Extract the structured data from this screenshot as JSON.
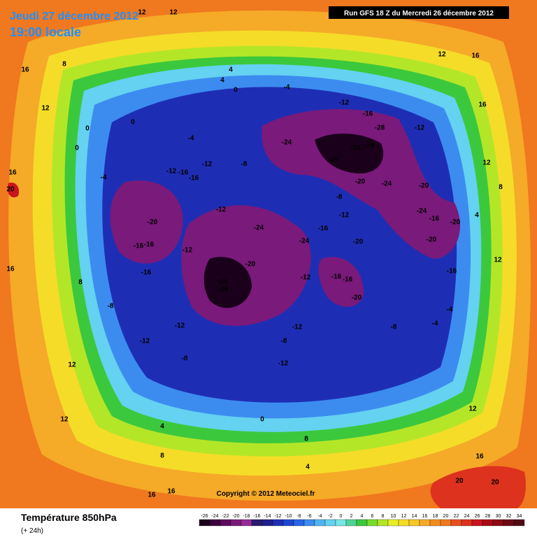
{
  "header": {
    "date": "Jeudi 27 décembre 2012",
    "time": "19:00 locale",
    "run": "Run GFS 18 Z du Mercredi 26 décembre 2012"
  },
  "map": {
    "copyright": "Copyright © 2012 Meteociel.fr",
    "contour_labels": [
      12,
      12,
      16,
      8,
      12,
      4,
      4,
      0,
      -4,
      -12,
      -16,
      -28,
      -12,
      -24,
      -28,
      -24,
      -28,
      -20,
      -24,
      -20,
      -8,
      -12,
      -16,
      -24,
      -24,
      -20,
      -20,
      -16,
      -16,
      -12,
      -16,
      -12,
      -20,
      -24,
      -28,
      -12,
      -16,
      -16,
      -20,
      -16,
      -12,
      -12,
      -8,
      -12,
      -8,
      -12,
      -8,
      -4,
      -4,
      -16,
      -20,
      -24,
      -20,
      0,
      -4,
      0,
      -4,
      0,
      -12,
      -16,
      -12,
      -16,
      -8,
      12,
      16,
      8,
      -8,
      12,
      4,
      8,
      8,
      4,
      0,
      12,
      16,
      20,
      20,
      16,
      16,
      12,
      16,
      16,
      12,
      8,
      4,
      12,
      20,
      16
    ]
  },
  "footer": {
    "title": "Température 850hPa",
    "lead": "(+ 24h)"
  },
  "legend": {
    "ticks": [
      -26,
      -24,
      -22,
      -20,
      -18,
      -16,
      -14,
      -12,
      -10,
      -8,
      -6,
      -4,
      -2,
      0,
      2,
      4,
      6,
      8,
      10,
      12,
      14,
      16,
      18,
      20,
      22,
      24,
      26,
      28,
      30,
      32,
      34
    ],
    "colors": [
      "#1a001a",
      "#3c003c",
      "#5e0a5e",
      "#7a1a7a",
      "#962a96",
      "#2a1a70",
      "#1e1e8c",
      "#1e2eb4",
      "#1e46d2",
      "#2864e6",
      "#3c8cf0",
      "#50b4f0",
      "#64d2f0",
      "#78e6e6",
      "#50d296",
      "#3cc83c",
      "#78dc28",
      "#b4e628",
      "#e6f028",
      "#f5dc28",
      "#f5c828",
      "#f5aa28",
      "#f08c1e",
      "#f0781e",
      "#e6501e",
      "#dc321e",
      "#c8141e",
      "#aa0a14",
      "#8c0a14",
      "#6e0a14",
      "#500a14"
    ]
  }
}
